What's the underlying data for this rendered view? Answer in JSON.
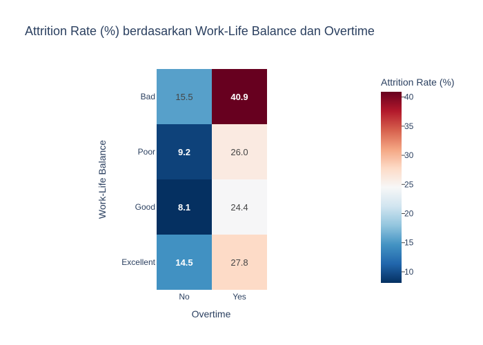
{
  "chart_data": {
    "type": "heatmap",
    "title": "Attrition Rate (%) berdasarkan Work-Life Balance dan Overtime",
    "xlabel": "Overtime",
    "ylabel": "Work-Life Balance",
    "x": [
      "No",
      "Yes"
    ],
    "y": [
      "Bad",
      "Poor",
      "Good",
      "Excellent"
    ],
    "z": [
      [
        15.5,
        40.9
      ],
      [
        9.2,
        26.0
      ],
      [
        8.1,
        24.4
      ],
      [
        14.5,
        27.8
      ]
    ],
    "labels": [
      [
        "15.5",
        "40.9"
      ],
      [
        "9.2",
        "26.0"
      ],
      [
        "8.1",
        "24.4"
      ],
      [
        "14.5",
        "27.8"
      ]
    ],
    "colorbar": {
      "title": "Attrition Rate (%)",
      "min": 8.1,
      "max": 40.9,
      "ticks": [
        10,
        15,
        20,
        25,
        30,
        35,
        40
      ]
    },
    "colorscale": "RdBu reversed",
    "colors": {
      "scale_stops": [
        "#053061",
        "#2166ac",
        "#4393c3",
        "#92c5de",
        "#d1e5f0",
        "#f7f7f7",
        "#fddbc7",
        "#f4a582",
        "#d6604d",
        "#b2182b",
        "#67001f"
      ],
      "text_dark": "#444444",
      "text_light": "#ffffff",
      "title": "#2a3f5f"
    }
  }
}
